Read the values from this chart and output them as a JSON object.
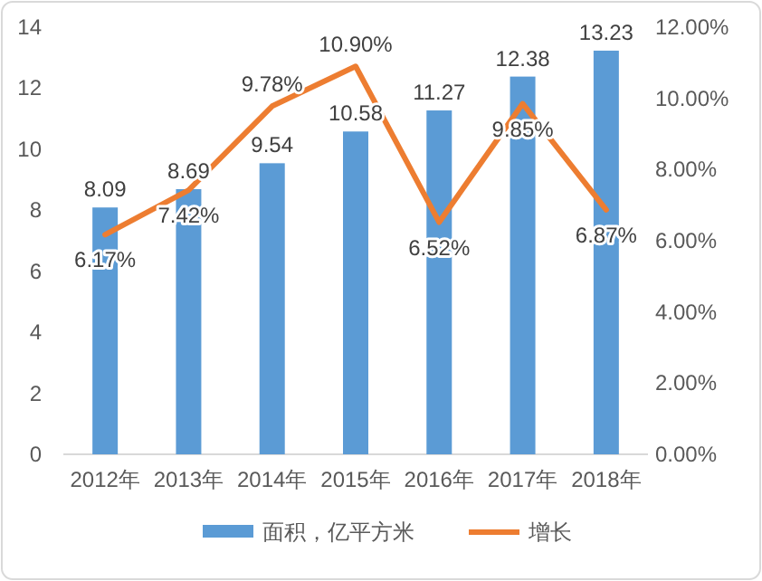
{
  "chart_data": {
    "type": "bar",
    "categories": [
      "2012年",
      "2013年",
      "2014年",
      "2015年",
      "2016年",
      "2017年",
      "2018年"
    ],
    "series": [
      {
        "name": "面积，亿平方米",
        "color": "#5b9bd5",
        "values": [
          8.09,
          8.69,
          9.54,
          10.58,
          11.27,
          12.38,
          13.23
        ],
        "value_labels": [
          "8.09",
          "8.69",
          "9.54",
          "10.58",
          "11.27",
          "12.38",
          "13.23"
        ]
      },
      {
        "name": "增长",
        "type": "line",
        "axis": "y2",
        "color": "#ed7d31",
        "values": [
          6.17,
          7.42,
          9.78,
          10.9,
          6.52,
          9.85,
          6.87
        ],
        "value_labels": [
          "6.17%",
          "7.42%",
          "9.78%",
          "10.90%",
          "6.52%",
          "9.85%",
          "6.87%"
        ]
      }
    ],
    "ylim": [
      0,
      14
    ],
    "yticks": [
      0,
      2,
      4,
      6,
      8,
      10,
      12,
      14
    ],
    "y2lim": [
      0,
      12
    ],
    "y2ticks": [
      {
        "value": 0,
        "label": "0.00%"
      },
      {
        "value": 2,
        "label": "2.00%"
      },
      {
        "value": 4,
        "label": "4.00%"
      },
      {
        "value": 6,
        "label": "6.00%"
      },
      {
        "value": 8,
        "label": "8.00%"
      },
      {
        "value": 10,
        "label": "10.00%"
      },
      {
        "value": 12,
        "label": "12.00%"
      }
    ],
    "legend": "bottom",
    "marker": "none",
    "line_style": "solid"
  }
}
